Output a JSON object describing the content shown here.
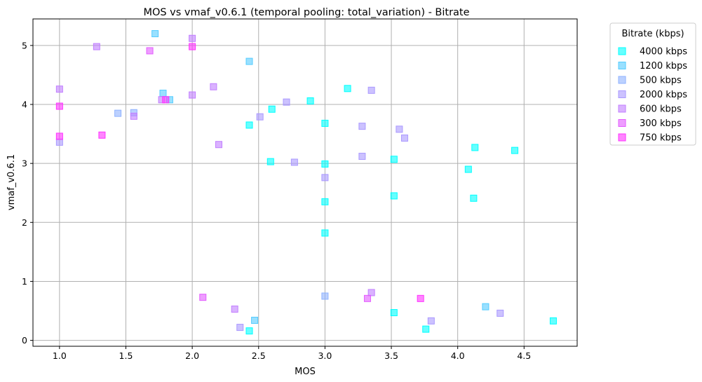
{
  "chart_data": {
    "type": "scatter",
    "title": "MOS vs vmaf_v0.6.1 (temporal pooling: total_variation) - Bitrate",
    "xlabel": "MOS",
    "ylabel": "vmaf_v0.6.1",
    "xlim": [
      0.8,
      4.9
    ],
    "ylim": [
      -0.1,
      5.45
    ],
    "xticks": [
      1.0,
      1.5,
      2.0,
      2.5,
      3.0,
      3.5,
      4.0,
      4.5
    ],
    "xtick_labels": [
      "1.0",
      "1.5",
      "2.0",
      "2.5",
      "3.0",
      "3.5",
      "4.0",
      "4.5"
    ],
    "yticks": [
      0,
      1,
      2,
      3,
      4,
      5
    ],
    "ytick_labels": [
      "0",
      "1",
      "2",
      "3",
      "4",
      "5"
    ],
    "grid": true,
    "legend": {
      "title": "Bitrate (kbps)",
      "placement": "outside right"
    },
    "series": [
      {
        "name": "4000 kbps",
        "color": "#00ffff",
        "points": [
          [
            2.43,
            3.65
          ],
          [
            2.59,
            3.03
          ],
          [
            2.6,
            3.92
          ],
          [
            2.89,
            4.06
          ],
          [
            3.0,
            3.68
          ],
          [
            3.0,
            2.99
          ],
          [
            3.0,
            2.35
          ],
          [
            3.0,
            1.82
          ],
          [
            3.17,
            4.27
          ],
          [
            3.52,
            3.07
          ],
          [
            3.52,
            2.45
          ],
          [
            3.76,
            0.19
          ],
          [
            4.08,
            2.9
          ],
          [
            4.12,
            2.41
          ],
          [
            4.13,
            3.27
          ],
          [
            4.43,
            3.22
          ],
          [
            4.72,
            0.33
          ],
          [
            2.43,
            0.16
          ],
          [
            3.52,
            0.47
          ]
        ]
      },
      {
        "name": "1200 kbps",
        "color": "#55ccff",
        "points": [
          [
            1.72,
            5.2
          ],
          [
            1.78,
            4.19
          ],
          [
            1.83,
            4.08
          ],
          [
            2.43,
            4.73
          ],
          [
            2.47,
            0.34
          ],
          [
            4.21,
            0.57
          ]
        ]
      },
      {
        "name": "500 kbps",
        "color": "#8fb2ff",
        "points": [
          [
            1.44,
            3.85
          ],
          [
            1.56,
            3.86
          ],
          [
            3.0,
            0.75
          ]
        ]
      },
      {
        "name": "2000 kbps",
        "color": "#aa99ff",
        "points": [
          [
            2.51,
            3.79
          ],
          [
            2.71,
            4.04
          ],
          [
            2.77,
            3.02
          ],
          [
            3.0,
            2.76
          ],
          [
            3.28,
            3.63
          ],
          [
            3.28,
            3.12
          ],
          [
            3.35,
            4.24
          ],
          [
            3.56,
            3.58
          ],
          [
            3.6,
            3.43
          ],
          [
            3.8,
            0.33
          ],
          [
            4.32,
            0.46
          ],
          [
            2.36,
            0.22
          ],
          [
            1.0,
            3.36
          ]
        ]
      },
      {
        "name": "600 kbps",
        "color": "#c17fff",
        "points": [
          [
            1.0,
            4.26
          ],
          [
            1.28,
            4.98
          ],
          [
            1.56,
            3.8
          ],
          [
            1.77,
            4.08
          ],
          [
            2.0,
            4.16
          ],
          [
            2.0,
            5.12
          ],
          [
            2.16,
            4.3
          ],
          [
            2.2,
            3.32
          ],
          [
            2.32,
            0.53
          ],
          [
            3.35,
            0.81
          ]
        ]
      },
      {
        "name": "300 kbps",
        "color": "#e35cff",
        "points": [
          [
            1.68,
            4.91
          ],
          [
            2.08,
            0.73
          ],
          [
            3.32,
            0.71
          ]
        ]
      },
      {
        "name": "750 kbps",
        "color": "#ff33ff",
        "points": [
          [
            1.0,
            3.97
          ],
          [
            1.0,
            3.46
          ],
          [
            1.32,
            3.48
          ],
          [
            1.8,
            4.08
          ],
          [
            2.0,
            4.98
          ],
          [
            3.72,
            0.71
          ]
        ]
      }
    ]
  }
}
